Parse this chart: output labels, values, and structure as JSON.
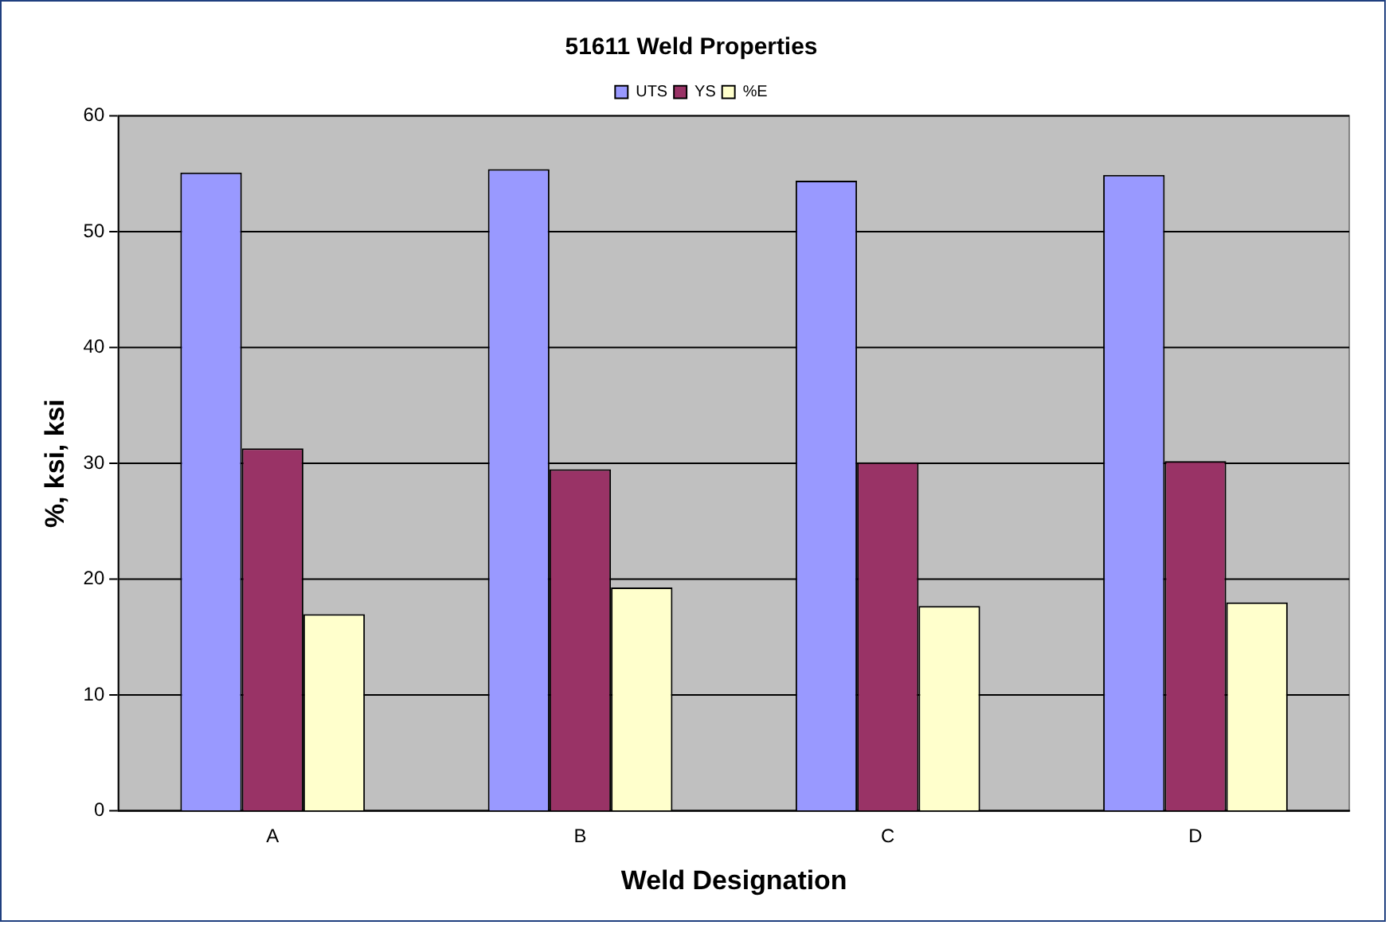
{
  "chart_data": {
    "type": "bar",
    "title": "51611 Weld Properties",
    "xlabel": "Weld Designation",
    "ylabel": "%, ksi, ksi",
    "categories": [
      "A",
      "B",
      "C",
      "D"
    ],
    "series": [
      {
        "name": "UTS",
        "color": "#9999ff",
        "values": [
          55.1,
          55.4,
          54.4,
          54.9
        ]
      },
      {
        "name": "YS",
        "color": "#993366",
        "values": [
          31.3,
          29.5,
          30.1,
          30.2
        ]
      },
      {
        "name": "%E",
        "color": "#ffffcc",
        "values": [
          17.0,
          19.3,
          17.7,
          18.0
        ]
      }
    ],
    "ylim": [
      0,
      60
    ],
    "yticks": [
      0,
      10,
      20,
      30,
      40,
      50,
      60
    ],
    "grid": "y",
    "legend": "top"
  }
}
